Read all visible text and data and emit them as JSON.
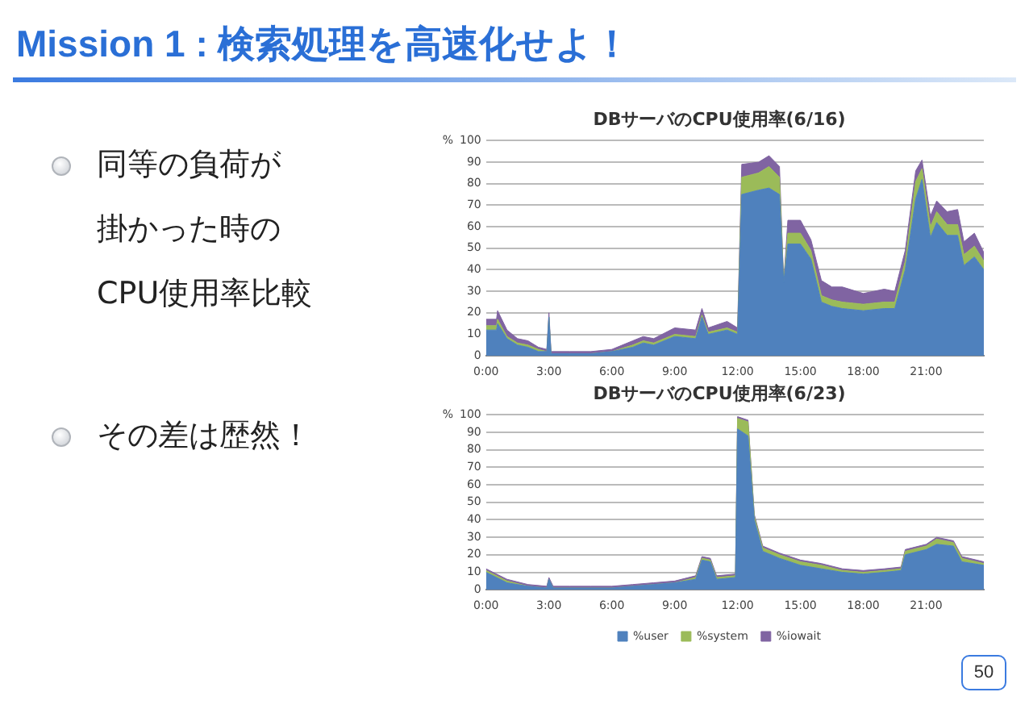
{
  "chart_data": [
    {
      "type": "other",
      "title": "Mission 1 : 検索処理を高速化せよ！",
      "annotations": [
        "同等の負荷が掛かった時のCPU使用率比較",
        "その差は歴然！",
        "50"
      ]
    },
    {
      "type": "area",
      "title": "DBサーバのCPU使用率(6/16)",
      "ylabel": "%",
      "stacked": true,
      "grid": "y",
      "legend": false,
      "x": [
        0,
        0.5,
        0.55,
        1,
        1.5,
        2,
        2.5,
        2.9,
        3,
        3.1,
        4,
        5,
        6,
        7,
        7.5,
        8,
        9,
        10,
        10.3,
        10.6,
        11.5,
        12,
        12.2,
        13,
        13.5,
        14,
        14.2,
        14.4,
        15,
        15.5,
        16,
        16.5,
        17,
        18,
        19,
        19.5,
        20,
        20.5,
        20.8,
        21.2,
        21.5,
        22,
        22.5,
        22.8,
        23.3,
        23.75
      ],
      "xlim": [
        0,
        23.75
      ],
      "xticks": [
        {
          "value": 0,
          "label": "0:00"
        },
        {
          "value": 3,
          "label": "3:00"
        },
        {
          "value": 6,
          "label": "6:00"
        },
        {
          "value": 9,
          "label": "9:00"
        },
        {
          "value": 12,
          "label": "12:00"
        },
        {
          "value": 15,
          "label": "15:00"
        },
        {
          "value": 18,
          "label": "18:00"
        },
        {
          "value": 21,
          "label": "21:00"
        }
      ],
      "ylim": [
        0,
        100
      ],
      "yticks": [
        0,
        10,
        20,
        30,
        40,
        50,
        60,
        70,
        80,
        90,
        100
      ],
      "series": [
        {
          "color": "#4f81bd",
          "values": [
            12,
            12,
            15,
            8,
            5,
            4,
            2,
            2,
            18,
            1,
            1,
            1,
            2,
            4,
            6,
            5,
            9,
            8,
            18,
            10,
            12,
            10,
            75,
            77,
            78,
            75,
            34,
            52,
            52,
            45,
            25,
            23,
            22,
            21,
            22,
            22,
            40,
            73,
            82,
            55,
            62,
            56,
            56,
            42,
            46,
            40
          ]
        },
        {
          "color": "#9bbb59",
          "values": [
            2,
            2,
            2,
            1,
            1,
            1,
            1,
            0,
            0,
            0,
            0,
            0,
            0,
            1,
            1,
            1,
            1,
            1,
            1,
            1,
            1,
            1,
            8,
            8,
            10,
            8,
            0,
            5,
            5,
            4,
            3,
            3,
            3,
            3,
            3,
            3,
            4,
            8,
            5,
            5,
            5,
            5,
            5,
            5,
            5,
            4
          ]
        },
        {
          "color": "#8064a2",
          "values": [
            3,
            3,
            4,
            3,
            2,
            2,
            1,
            1,
            2,
            1,
            1,
            1,
            1,
            2,
            2,
            2,
            3,
            3,
            3,
            2,
            3,
            2,
            6,
            5,
            5,
            5,
            0,
            6,
            6,
            5,
            7,
            6,
            7,
            5,
            6,
            5,
            5,
            5,
            4,
            5,
            5,
            6,
            7,
            6,
            6,
            4
          ]
        }
      ]
    },
    {
      "type": "area",
      "title": "DBサーバのCPU使用率(6/23)",
      "ylabel": "%",
      "stacked": true,
      "grid": "y",
      "legend": "bottom",
      "x": [
        0,
        0.5,
        1,
        2,
        2.9,
        3,
        3.2,
        4,
        5,
        6,
        7,
        8,
        9,
        10,
        10.3,
        10.7,
        11,
        11.9,
        12,
        12.5,
        12.8,
        13.2,
        14,
        15,
        16,
        17,
        18,
        19,
        19.8,
        20,
        21,
        21.5,
        22.3,
        22.7,
        23.75
      ],
      "xlim": [
        0,
        23.75
      ],
      "xticks": [
        {
          "value": 0,
          "label": "0:00"
        },
        {
          "value": 3,
          "label": "3:00"
        },
        {
          "value": 6,
          "label": "6:00"
        },
        {
          "value": 9,
          "label": "9:00"
        },
        {
          "value": 12,
          "label": "12:00"
        },
        {
          "value": 15,
          "label": "15:00"
        },
        {
          "value": 18,
          "label": "18:00"
        },
        {
          "value": 21,
          "label": "21:00"
        }
      ],
      "ylim": [
        0,
        100
      ],
      "yticks": [
        0,
        10,
        20,
        30,
        40,
        50,
        60,
        70,
        80,
        90,
        100
      ],
      "series": [
        {
          "name": "%user",
          "color": "#4f81bd",
          "values": [
            10,
            7,
            4,
            2,
            1,
            6,
            1,
            1,
            1,
            1,
            2,
            3,
            4,
            6,
            17,
            16,
            6,
            7,
            92,
            88,
            40,
            22,
            18,
            14,
            12,
            10,
            9,
            10,
            11,
            20,
            23,
            26,
            25,
            16,
            14
          ]
        },
        {
          "name": "%system",
          "color": "#9bbb59",
          "values": [
            1,
            1,
            1,
            0,
            0,
            0,
            0,
            0,
            0,
            0,
            0,
            0,
            0,
            1,
            1,
            1,
            1,
            1,
            6,
            8,
            2,
            2,
            2,
            2,
            2,
            1,
            1,
            1,
            1,
            2,
            2,
            3,
            2,
            2,
            1
          ]
        },
        {
          "name": "%iowait",
          "color": "#8064a2",
          "values": [
            1,
            1,
            1,
            1,
            1,
            1,
            1,
            1,
            1,
            1,
            1,
            1,
            1,
            1,
            1,
            1,
            1,
            1,
            1,
            1,
            1,
            1,
            1,
            1,
            1,
            1,
            1,
            1,
            1,
            1,
            1,
            1,
            1,
            1,
            1
          ]
        }
      ]
    }
  ]
}
